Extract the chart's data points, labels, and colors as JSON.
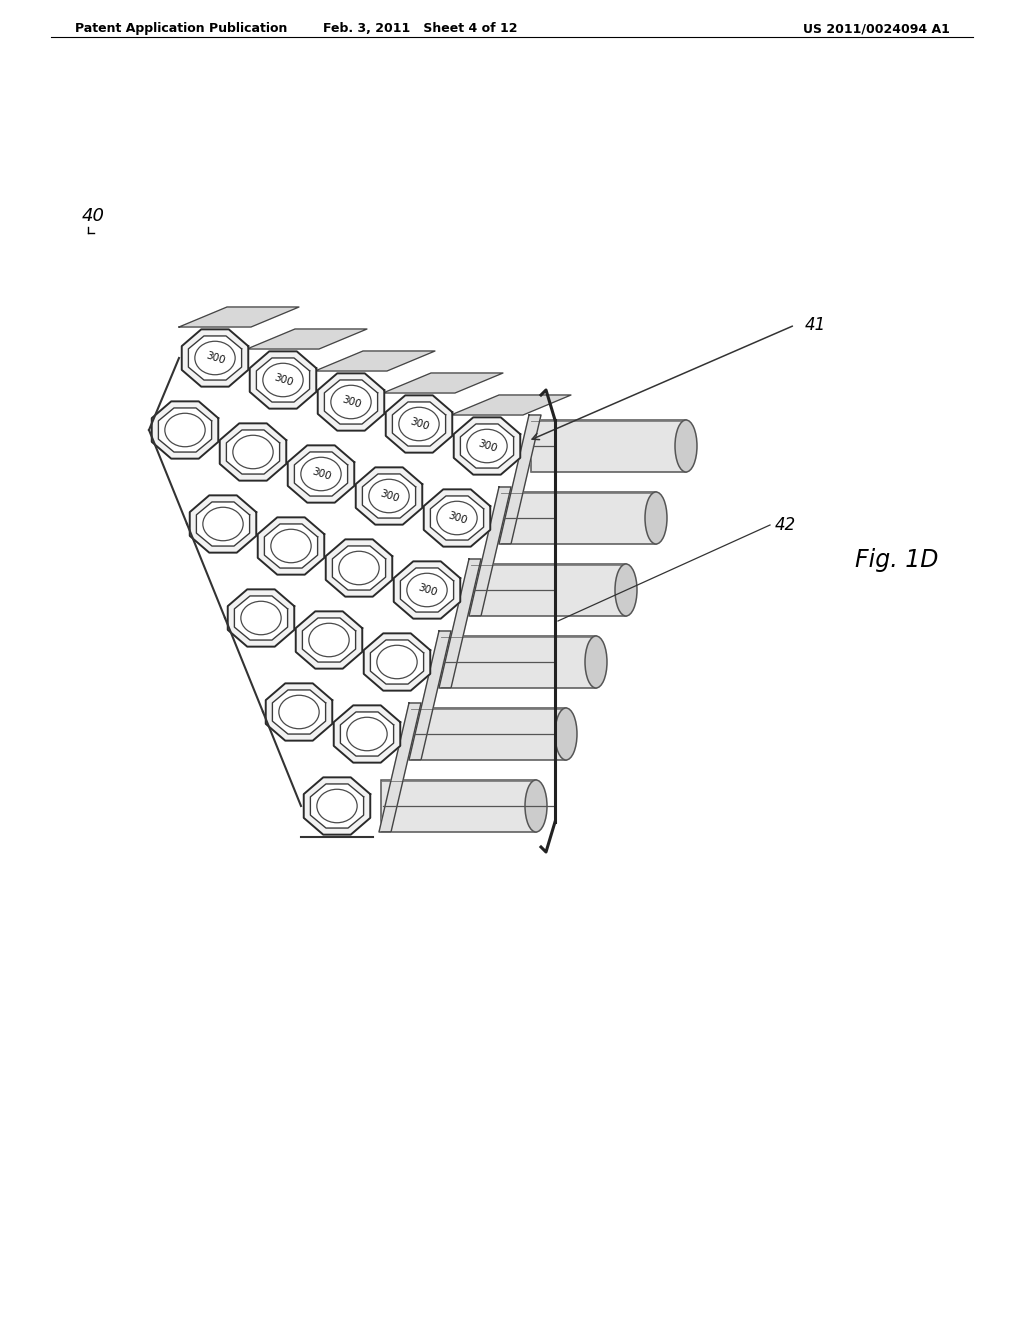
{
  "bg_color": "#ffffff",
  "line_color": "#000000",
  "header_left": "Patent Application Publication",
  "header_center": "Feb. 3, 2011   Sheet 4 of 12",
  "header_right": "US 2011/0024094 A1",
  "label_40": "40",
  "label_41": "41",
  "label_42": "42",
  "label_fig": "Fig. 1D",
  "label_300": "300"
}
